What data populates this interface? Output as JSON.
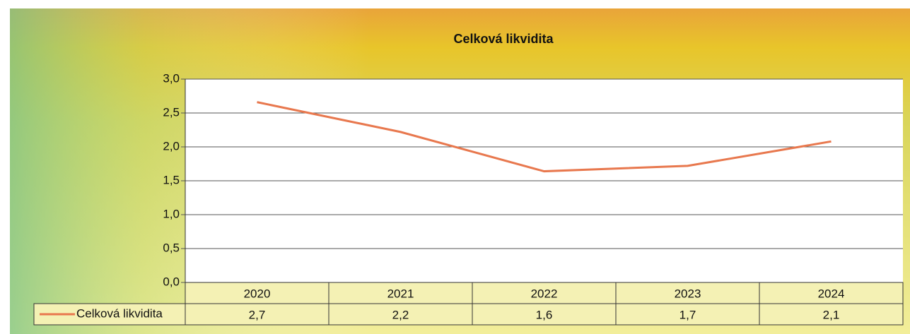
{
  "chart_data": {
    "type": "line",
    "title": "Celková likvidita",
    "categories": [
      "2020",
      "2021",
      "2022",
      "2023",
      "2024"
    ],
    "series": [
      {
        "name": "Celková likvidita",
        "color": "#e8784e",
        "values": [
          2.66,
          2.22,
          1.64,
          1.72,
          2.08
        ],
        "value_labels": [
          "2,7",
          "2,2",
          "1,6",
          "1,7",
          "2,1"
        ]
      }
    ],
    "ylim": [
      0,
      3
    ],
    "yticks": [
      {
        "value": 0,
        "label": "0,0"
      },
      {
        "value": 0.5,
        "label": "0,5"
      },
      {
        "value": 1,
        "label": "1,0"
      },
      {
        "value": 1.5,
        "label": "1,5"
      },
      {
        "value": 2,
        "label": "2,0"
      },
      {
        "value": 2.5,
        "label": "2,5"
      },
      {
        "value": 3,
        "label": "3,0"
      }
    ],
    "grid": true
  }
}
